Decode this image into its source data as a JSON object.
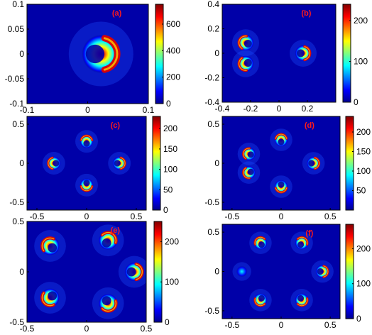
{
  "chart_data": [
    {
      "type": "heatmap",
      "panel_label": "(a)",
      "xlim": [
        -0.1,
        0.1
      ],
      "ylim": [
        -0.1,
        0.1
      ],
      "xticks": [
        -0.1,
        0,
        0.1
      ],
      "xtick_labels": [
        "-0.1",
        "0",
        "0.1"
      ],
      "yticks": [
        0.1,
        0.05,
        0,
        -0.05,
        -0.1
      ],
      "ytick_labels": [
        "0.1",
        "0.05",
        "0",
        "-0.05",
        "-0.1"
      ],
      "clim": [
        0,
        750
      ],
      "colorbar_ticks": [
        600,
        400,
        200,
        0
      ],
      "colorbar_labels": [
        "600",
        "400",
        "200",
        "0"
      ],
      "lobes": [
        {
          "angle_deg": 0,
          "distance": 0.022,
          "radius": 0.028,
          "peak": 750,
          "form": "crescent"
        }
      ],
      "grid": false,
      "colormap": "jet"
    },
    {
      "type": "heatmap",
      "panel_label": "(b)",
      "xlim": [
        -0.4,
        0.4
      ],
      "ylim": [
        -0.4,
        0.4
      ],
      "xticks": [
        -0.4,
        -0.2,
        0,
        0.2
      ],
      "xtick_labels": [
        "-0.4",
        "-0.2",
        "0",
        "0.2"
      ],
      "yticks": [
        0.4,
        0.2,
        0,
        -0.2,
        -0.4
      ],
      "ytick_labels": [
        "0.4",
        "0.2",
        "0",
        "-0.2",
        "-0.4"
      ],
      "clim": [
        0,
        240
      ],
      "colorbar_ticks": [
        200,
        100,
        0
      ],
      "colorbar_labels": [
        "200",
        "100",
        "0"
      ],
      "lobes": [
        {
          "angle_deg": 160,
          "distance": 0.25,
          "radius": 0.05,
          "peak": 240,
          "form": "crescent"
        },
        {
          "angle_deg": 200,
          "distance": 0.25,
          "radius": 0.05,
          "peak": 240,
          "form": "crescent"
        },
        {
          "angle_deg": 0,
          "distance": 0.17,
          "radius": 0.05,
          "peak": 240,
          "form": "crescent"
        }
      ],
      "grid": false,
      "colormap": "jet"
    },
    {
      "type": "heatmap",
      "panel_label": "(c)",
      "xlim": [
        -0.6,
        0.6
      ],
      "ylim": [
        -0.6,
        0.6
      ],
      "xticks": [
        -0.5,
        0,
        0.5
      ],
      "xtick_labels": [
        "-0.5",
        "0",
        "0.5"
      ],
      "yticks": [
        0.5,
        0,
        -0.5
      ],
      "ytick_labels": [
        "0.5",
        "0",
        "-0.5"
      ],
      "clim": [
        0,
        230
      ],
      "colorbar_ticks": [
        200,
        150,
        100,
        50,
        0
      ],
      "colorbar_labels": [
        "200",
        "150",
        "100",
        "50",
        "0"
      ],
      "lobes": [
        {
          "angle_deg": 90,
          "distance": 0.28,
          "radius": 0.06,
          "peak": 230,
          "form": "crescent"
        },
        {
          "angle_deg": 180,
          "distance": 0.33,
          "radius": 0.06,
          "peak": 230,
          "form": "crescent"
        },
        {
          "angle_deg": 270,
          "distance": 0.28,
          "radius": 0.06,
          "peak": 230,
          "form": "crescent"
        },
        {
          "angle_deg": 0,
          "distance": 0.33,
          "radius": 0.06,
          "peak": 230,
          "form": "crescent"
        }
      ],
      "grid": false,
      "colormap": "jet"
    },
    {
      "type": "heatmap",
      "panel_label": "(d)",
      "xlim": [
        -0.6,
        0.6
      ],
      "ylim": [
        -0.6,
        0.6
      ],
      "xticks": [
        -0.5,
        0,
        0.5
      ],
      "xtick_labels": [
        "-0.5",
        "0",
        "0.5"
      ],
      "yticks": [
        0.5,
        0,
        -0.5
      ],
      "ytick_labels": [
        "0.5",
        "0",
        "-0.5"
      ],
      "clim": [
        0,
        240
      ],
      "colorbar_ticks": [
        200,
        150,
        100,
        50
      ],
      "colorbar_labels": [
        "200",
        "150",
        "100",
        "50"
      ],
      "lobes": [
        {
          "angle_deg": 90,
          "distance": 0.3,
          "radius": 0.06,
          "peak": 240,
          "form": "crescent"
        },
        {
          "angle_deg": 160,
          "distance": 0.35,
          "radius": 0.06,
          "peak": 240,
          "form": "crescent"
        },
        {
          "angle_deg": 200,
          "distance": 0.35,
          "radius": 0.06,
          "peak": 240,
          "form": "crescent"
        },
        {
          "angle_deg": 270,
          "distance": 0.3,
          "radius": 0.06,
          "peak": 240,
          "form": "crescent"
        },
        {
          "angle_deg": 0,
          "distance": 0.33,
          "radius": 0.06,
          "peak": 240,
          "form": "crescent"
        }
      ],
      "grid": false,
      "colormap": "jet"
    },
    {
      "type": "heatmap",
      "panel_label": "(e)",
      "xlim": [
        -0.5,
        0.5
      ],
      "ylim": [
        -0.5,
        0.5
      ],
      "xticks": [
        -0.5,
        0,
        0.5
      ],
      "xtick_labels": [
        "-0.5",
        "0",
        "0.5"
      ],
      "yticks": [
        0.5,
        0,
        -0.5
      ],
      "ytick_labels": [
        "0.5",
        "0",
        "-0.5"
      ],
      "clim": [
        0,
        250
      ],
      "colorbar_ticks": [
        200,
        100,
        0
      ],
      "colorbar_labels": [
        "200",
        "100",
        "0"
      ],
      "lobes": [
        {
          "angle_deg": 60,
          "distance": 0.36,
          "radius": 0.07,
          "peak": 250,
          "form": "crescent"
        },
        {
          "angle_deg": 140,
          "distance": 0.4,
          "radius": 0.07,
          "peak": 250,
          "form": "crescent"
        },
        {
          "angle_deg": 220,
          "distance": 0.4,
          "radius": 0.07,
          "peak": 250,
          "form": "crescent"
        },
        {
          "angle_deg": 300,
          "distance": 0.36,
          "radius": 0.07,
          "peak": 250,
          "form": "crescent"
        },
        {
          "angle_deg": 0,
          "distance": 0.4,
          "radius": 0.07,
          "peak": 250,
          "form": "crescent"
        }
      ],
      "grid": false,
      "colormap": "jet"
    },
    {
      "type": "heatmap",
      "panel_label": "(f)",
      "xlim": [
        -0.6,
        0.6
      ],
      "ylim": [
        -0.6,
        0.6
      ],
      "xticks": [
        -0.5,
        0,
        0.5
      ],
      "xtick_labels": [
        "-0.5",
        "0",
        "0.5"
      ],
      "yticks": [
        0.5,
        0,
        -0.5
      ],
      "ytick_labels": [
        "0.5",
        "0",
        "-0.5"
      ],
      "clim": [
        0,
        270
      ],
      "colorbar_ticks": [
        200,
        100,
        0
      ],
      "colorbar_labels": [
        "200",
        "100",
        "0"
      ],
      "lobes": [
        {
          "angle_deg": 60,
          "distance": 0.42,
          "radius": 0.06,
          "peak": 270,
          "form": "crescent"
        },
        {
          "angle_deg": 120,
          "distance": 0.42,
          "radius": 0.06,
          "peak": 270,
          "form": "crescent"
        },
        {
          "angle_deg": 180,
          "distance": 0.4,
          "radius": 0.05,
          "peak": 120,
          "form": "blob"
        },
        {
          "angle_deg": 240,
          "distance": 0.42,
          "radius": 0.06,
          "peak": 270,
          "form": "crescent"
        },
        {
          "angle_deg": 300,
          "distance": 0.42,
          "radius": 0.06,
          "peak": 270,
          "form": "crescent"
        },
        {
          "angle_deg": 0,
          "distance": 0.42,
          "radius": 0.06,
          "peak": 270,
          "form": "crescent"
        }
      ],
      "grid": false,
      "colormap": "jet"
    }
  ],
  "colors": {
    "background": "#0000a8",
    "label": "#ff1a1a",
    "axis": "#000000"
  }
}
